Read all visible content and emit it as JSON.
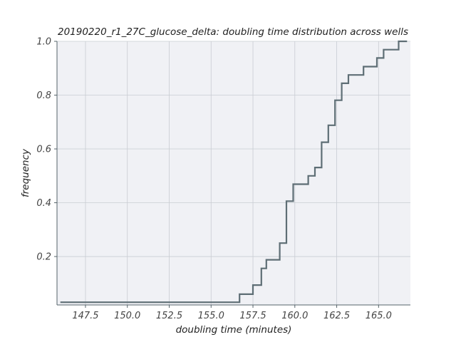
{
  "chart_data": {
    "type": "step",
    "title": "20190220_r1_27C_glucose_delta: doubling time distribution across wells",
    "xlabel": "doubling time (minutes)",
    "ylabel": "frequency",
    "xlim": [
      145.8,
      166.9
    ],
    "ylim": [
      0.02,
      1.0
    ],
    "x_ticks": [
      147.5,
      150.0,
      152.5,
      155.0,
      157.5,
      160.0,
      162.5,
      165.0
    ],
    "x_tick_labels": [
      "147.5",
      "150.0",
      "152.5",
      "155.0",
      "157.5",
      "160.0",
      "162.5",
      "165.0"
    ],
    "y_ticks": [
      0.2,
      0.4,
      0.6,
      0.8,
      1.0
    ],
    "y_tick_labels": [
      "0.2",
      "0.4",
      "0.6",
      "0.8",
      "1.0"
    ],
    "grid": true,
    "background_color": "#f0f1f5",
    "line_color": "#5e6e75",
    "grid_color": "#c9ccd2",
    "series": [
      {
        "x": [
          146.0,
          156.7,
          157.5,
          158.0,
          158.3,
          159.1,
          159.5,
          159.9,
          160.8,
          161.2,
          161.6,
          162.0,
          162.4,
          162.8,
          163.2,
          164.1,
          164.9,
          165.3,
          166.2,
          166.7
        ],
        "y": [
          0.03,
          0.06,
          0.094,
          0.156,
          0.188,
          0.25,
          0.406,
          0.469,
          0.5,
          0.531,
          0.625,
          0.688,
          0.781,
          0.844,
          0.875,
          0.906,
          0.938,
          0.969,
          1.0,
          1.0
        ]
      }
    ]
  }
}
